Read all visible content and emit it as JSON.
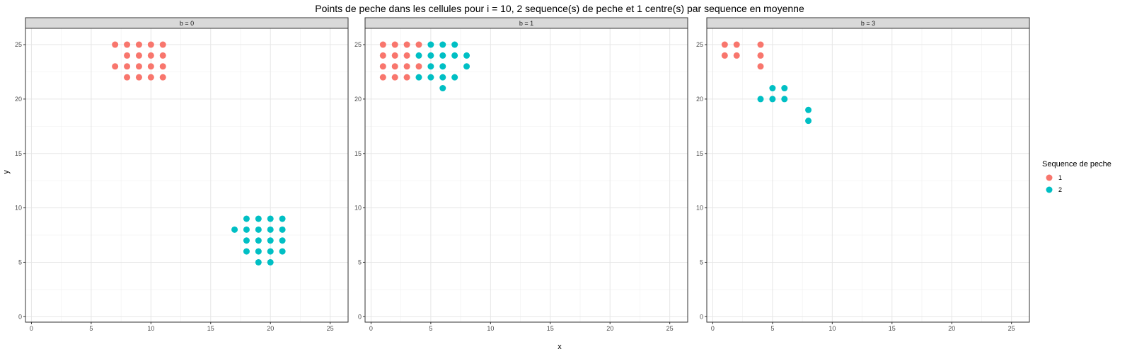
{
  "chart_data": {
    "type": "scatter",
    "title": "Points de peche dans les cellules pour i = 10, 2 sequence(s) de peche et 1 centre(s) par sequence en moyenne",
    "xlabel": "x",
    "ylabel": "y",
    "xlim": [
      -0.5,
      26.5
    ],
    "ylim": [
      -0.5,
      26.5
    ],
    "xticks": [
      0,
      5,
      10,
      15,
      20,
      25
    ],
    "yticks": [
      0,
      5,
      10,
      15,
      20,
      25
    ],
    "grid": true,
    "legend": {
      "title": "Sequence de peche",
      "position": "right",
      "entries": [
        {
          "label": "1",
          "color": "#F8766D"
        },
        {
          "label": "2",
          "color": "#00BFC4"
        }
      ]
    },
    "facets": [
      {
        "label": "b = 0",
        "series": [
          {
            "name": "1",
            "points": [
              [
                7,
                25
              ],
              [
                8,
                25
              ],
              [
                9,
                25
              ],
              [
                10,
                25
              ],
              [
                11,
                25
              ],
              [
                8,
                24
              ],
              [
                9,
                24
              ],
              [
                10,
                24
              ],
              [
                11,
                24
              ],
              [
                7,
                23
              ],
              [
                8,
                23
              ],
              [
                9,
                23
              ],
              [
                10,
                23
              ],
              [
                11,
                23
              ],
              [
                8,
                22
              ],
              [
                9,
                22
              ],
              [
                10,
                22
              ],
              [
                11,
                22
              ]
            ]
          },
          {
            "name": "2",
            "points": [
              [
                18,
                9
              ],
              [
                19,
                9
              ],
              [
                20,
                9
              ],
              [
                21,
                9
              ],
              [
                17,
                8
              ],
              [
                18,
                8
              ],
              [
                19,
                8
              ],
              [
                20,
                8
              ],
              [
                21,
                8
              ],
              [
                18,
                7
              ],
              [
                19,
                7
              ],
              [
                20,
                7
              ],
              [
                21,
                7
              ],
              [
                18,
                6
              ],
              [
                19,
                6
              ],
              [
                20,
                6
              ],
              [
                21,
                6
              ],
              [
                19,
                5
              ],
              [
                20,
                5
              ]
            ]
          }
        ]
      },
      {
        "label": "b = 1",
        "series": [
          {
            "name": "1",
            "points": [
              [
                1,
                25
              ],
              [
                2,
                25
              ],
              [
                3,
                25
              ],
              [
                4,
                25
              ],
              [
                1,
                24
              ],
              [
                2,
                24
              ],
              [
                3,
                24
              ],
              [
                1,
                23
              ],
              [
                2,
                23
              ],
              [
                3,
                23
              ],
              [
                4,
                23
              ],
              [
                1,
                22
              ],
              [
                2,
                22
              ],
              [
                3,
                22
              ]
            ]
          },
          {
            "name": "2",
            "points": [
              [
                5,
                25
              ],
              [
                6,
                25
              ],
              [
                7,
                25
              ],
              [
                4,
                24
              ],
              [
                5,
                24
              ],
              [
                6,
                24
              ],
              [
                7,
                24
              ],
              [
                8,
                24
              ],
              [
                5,
                23
              ],
              [
                6,
                23
              ],
              [
                8,
                23
              ],
              [
                4,
                22
              ],
              [
                5,
                22
              ],
              [
                6,
                22
              ],
              [
                7,
                22
              ],
              [
                6,
                21
              ]
            ]
          }
        ]
      },
      {
        "label": "b = 3",
        "series": [
          {
            "name": "1",
            "points": [
              [
                1,
                25
              ],
              [
                2,
                25
              ],
              [
                4,
                25
              ],
              [
                1,
                24
              ],
              [
                2,
                24
              ],
              [
                4,
                24
              ],
              [
                4,
                23
              ]
            ]
          },
          {
            "name": "2",
            "points": [
              [
                5,
                21
              ],
              [
                6,
                21
              ],
              [
                4,
                20
              ],
              [
                5,
                20
              ],
              [
                6,
                20
              ],
              [
                8,
                19
              ],
              [
                8,
                18
              ]
            ]
          }
        ]
      }
    ]
  }
}
